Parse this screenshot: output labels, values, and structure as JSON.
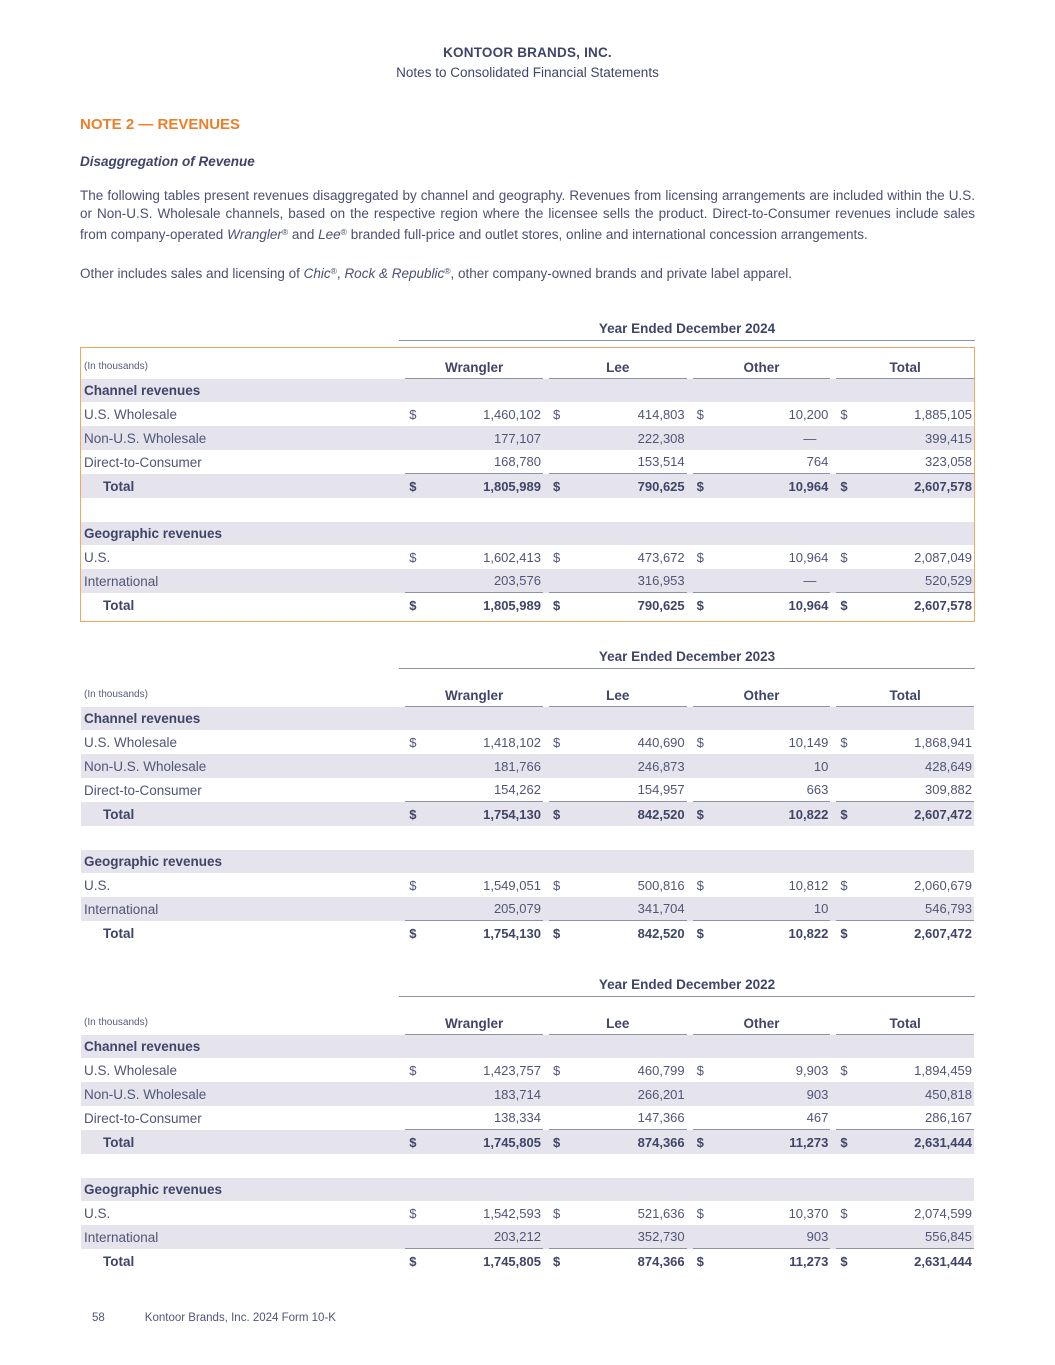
{
  "header": {
    "company": "KONTOOR BRANDS, INC.",
    "subtitle": "Notes to Consolidated Financial Statements"
  },
  "note": {
    "heading": "NOTE 2 — REVENUES",
    "subheading": "Disaggregation of Revenue"
  },
  "paragraph1": {
    "part1": "The following tables present revenues disaggregated by channel and geography. Revenues from licensing arrangements are included within the U.S. or Non-U.S. Wholesale channels, based on the respective region where the licensee sells the product. Direct-to-Consumer revenues include sales from company-operated ",
    "brand1": "Wrangler",
    "reg1": "®",
    "part2": " and ",
    "brand2": "Lee",
    "reg2": "®",
    "part3": " branded full-price and outlet stores, online and international concession arrangements."
  },
  "paragraph2": {
    "part1": "Other includes sales and licensing of ",
    "brand1": "Chic",
    "reg1": "®",
    "part2": ", ",
    "brand2": "Rock & Republic",
    "reg2": "®",
    "part3": ", other company-owned brands and private label apparel."
  },
  "accent_colors": {
    "heading_orange": "#ee7f2a",
    "table_border_orange": "#f2a75f",
    "row_shade": "#e5e4ec",
    "text_navy": "#3f4568"
  },
  "tables": [
    {
      "period": "Year Ended December 2024",
      "unit_note": "(In thousands)",
      "columns": [
        "Wrangler",
        "Lee",
        "Other",
        "Total"
      ],
      "highlighted": true,
      "sections": [
        {
          "header": "Channel revenues",
          "rows": [
            {
              "label": "U.S. Wholesale",
              "dollar": true,
              "shaded": false,
              "bold": false,
              "underline": false,
              "values": [
                "1,460,102",
                "414,803",
                "10,200",
                "1,885,105"
              ]
            },
            {
              "label": "Non-U.S. Wholesale",
              "dollar": false,
              "shaded": true,
              "bold": false,
              "underline": false,
              "values": [
                "177,107",
                "222,308",
                "—",
                "399,415"
              ]
            },
            {
              "label": "Direct-to-Consumer",
              "dollar": false,
              "shaded": false,
              "bold": false,
              "underline": true,
              "values": [
                "168,780",
                "153,514",
                "764",
                "323,058"
              ]
            },
            {
              "label": "Total",
              "dollar": true,
              "shaded": true,
              "bold": true,
              "underline": false,
              "values": [
                "1,805,989",
                "790,625",
                "10,964",
                "2,607,578"
              ]
            }
          ]
        },
        {
          "header": "Geographic revenues",
          "rows": [
            {
              "label": "U.S.",
              "dollar": true,
              "shaded": false,
              "bold": false,
              "underline": false,
              "values": [
                "1,602,413",
                "473,672",
                "10,964",
                "2,087,049"
              ]
            },
            {
              "label": "International",
              "dollar": false,
              "shaded": true,
              "bold": false,
              "underline": true,
              "values": [
                "203,576",
                "316,953",
                "—",
                "520,529"
              ]
            },
            {
              "label": "Total",
              "dollar": true,
              "shaded": false,
              "bold": true,
              "underline": false,
              "values": [
                "1,805,989",
                "790,625",
                "10,964",
                "2,607,578"
              ]
            }
          ]
        }
      ]
    },
    {
      "period": "Year Ended December 2023",
      "unit_note": "(In thousands)",
      "columns": [
        "Wrangler",
        "Lee",
        "Other",
        "Total"
      ],
      "highlighted": false,
      "sections": [
        {
          "header": "Channel revenues",
          "rows": [
            {
              "label": "U.S. Wholesale",
              "dollar": true,
              "shaded": false,
              "bold": false,
              "underline": false,
              "values": [
                "1,418,102",
                "440,690",
                "10,149",
                "1,868,941"
              ]
            },
            {
              "label": "Non-U.S. Wholesale",
              "dollar": false,
              "shaded": true,
              "bold": false,
              "underline": false,
              "values": [
                "181,766",
                "246,873",
                "10",
                "428,649"
              ]
            },
            {
              "label": "Direct-to-Consumer",
              "dollar": false,
              "shaded": false,
              "bold": false,
              "underline": true,
              "values": [
                "154,262",
                "154,957",
                "663",
                "309,882"
              ]
            },
            {
              "label": "Total",
              "dollar": true,
              "shaded": true,
              "bold": true,
              "underline": false,
              "values": [
                "1,754,130",
                "842,520",
                "10,822",
                "2,607,472"
              ]
            }
          ]
        },
        {
          "header": "Geographic revenues",
          "rows": [
            {
              "label": "U.S.",
              "dollar": true,
              "shaded": false,
              "bold": false,
              "underline": false,
              "values": [
                "1,549,051",
                "500,816",
                "10,812",
                "2,060,679"
              ]
            },
            {
              "label": "International",
              "dollar": false,
              "shaded": true,
              "bold": false,
              "underline": true,
              "values": [
                "205,079",
                "341,704",
                "10",
                "546,793"
              ]
            },
            {
              "label": "Total",
              "dollar": true,
              "shaded": false,
              "bold": true,
              "underline": false,
              "values": [
                "1,754,130",
                "842,520",
                "10,822",
                "2,607,472"
              ]
            }
          ]
        }
      ]
    },
    {
      "period": "Year Ended December 2022",
      "unit_note": "(In thousands)",
      "columns": [
        "Wrangler",
        "Lee",
        "Other",
        "Total"
      ],
      "highlighted": false,
      "sections": [
        {
          "header": "Channel revenues",
          "rows": [
            {
              "label": "U.S. Wholesale",
              "dollar": true,
              "shaded": false,
              "bold": false,
              "underline": false,
              "values": [
                "1,423,757",
                "460,799",
                "9,903",
                "1,894,459"
              ]
            },
            {
              "label": "Non-U.S. Wholesale",
              "dollar": false,
              "shaded": true,
              "bold": false,
              "underline": false,
              "values": [
                "183,714",
                "266,201",
                "903",
                "450,818"
              ]
            },
            {
              "label": "Direct-to-Consumer",
              "dollar": false,
              "shaded": false,
              "bold": false,
              "underline": true,
              "values": [
                "138,334",
                "147,366",
                "467",
                "286,167"
              ]
            },
            {
              "label": "Total",
              "dollar": true,
              "shaded": true,
              "bold": true,
              "underline": false,
              "values": [
                "1,745,805",
                "874,366",
                "11,273",
                "2,631,444"
              ]
            }
          ]
        },
        {
          "header": "Geographic revenues",
          "rows": [
            {
              "label": "U.S.",
              "dollar": true,
              "shaded": false,
              "bold": false,
              "underline": false,
              "values": [
                "1,542,593",
                "521,636",
                "10,370",
                "2,074,599"
              ]
            },
            {
              "label": "International",
              "dollar": false,
              "shaded": true,
              "bold": false,
              "underline": true,
              "values": [
                "203,212",
                "352,730",
                "903",
                "556,845"
              ]
            },
            {
              "label": "Total",
              "dollar": true,
              "shaded": false,
              "bold": true,
              "underline": false,
              "values": [
                "1,745,805",
                "874,366",
                "11,273",
                "2,631,444"
              ]
            }
          ]
        }
      ]
    }
  ],
  "footer": {
    "page_number": "58",
    "text": "Kontoor Brands, Inc. 2024 Form 10-K"
  }
}
